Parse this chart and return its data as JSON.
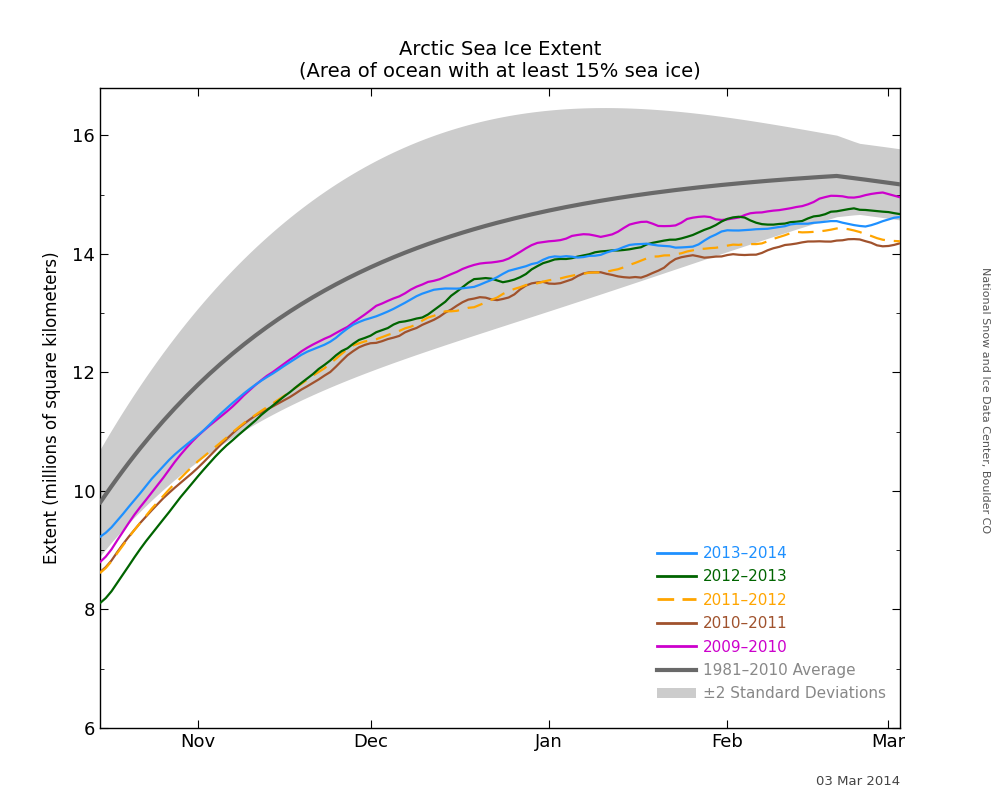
{
  "title": "Arctic Sea Ice Extent",
  "subtitle": "(Area of ocean with at least 15% sea ice)",
  "ylabel": "Extent (millions of square kilometers)",
  "date_label": "03 Mar 2014",
  "attribution": "National Snow and Ice Data Center, Boulder CO",
  "ylim": [
    6,
    16.8
  ],
  "yticks": [
    6,
    8,
    10,
    12,
    14,
    16
  ],
  "colors": {
    "2013-2014": "#1E90FF",
    "2012-2013": "#006400",
    "2011-2012": "#FFA500",
    "2010-2011": "#A0522D",
    "2009-2010": "#CC00CC",
    "average": "#696969",
    "shading": "#CCCCCC"
  },
  "x_tick_labels": [
    "Nov",
    "Dec",
    "Jan",
    "Feb",
    "Mar"
  ],
  "legend_labels": [
    "2013–2014",
    "2012–2013",
    "2011–2012",
    "2010–2011",
    "2009–2010",
    "1981–2010 Average",
    "±2 Standard Deviations"
  ]
}
